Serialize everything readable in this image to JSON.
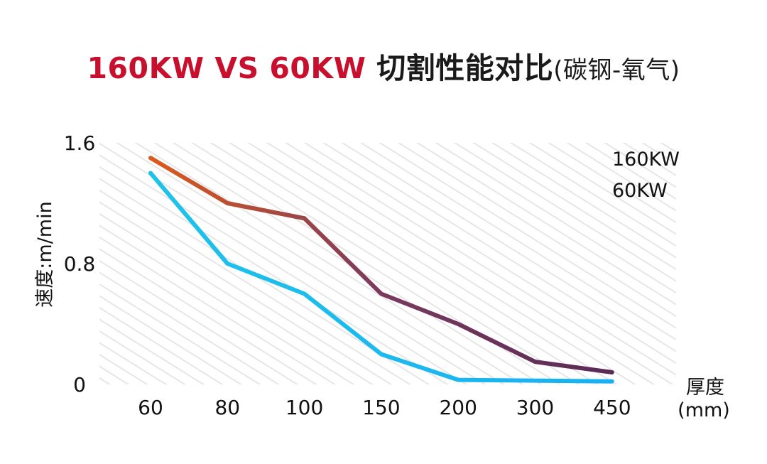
{
  "title": {
    "accent": "160KW VS 60KW",
    "main": " 切割性能对比",
    "suffix": "(碳钢-氧气)"
  },
  "chart_data": {
    "type": "line",
    "categories": [
      "60",
      "80",
      "100",
      "150",
      "200",
      "300",
      "450"
    ],
    "series": [
      {
        "name": "160KW",
        "values": [
          1.5,
          1.2,
          1.1,
          0.6,
          0.4,
          0.15,
          0.08
        ],
        "colors": [
          "#dd5a1c",
          "#7a3a5e",
          "#5a2a55"
        ]
      },
      {
        "name": "60KW",
        "values": [
          1.4,
          0.8,
          0.6,
          0.2,
          0.03,
          0.025,
          0.02
        ],
        "colors": [
          "#1ec3ea",
          "#1ab0f2"
        ]
      }
    ],
    "ylabel": "速度:m/min",
    "xlabel": "厚度",
    "xlabel_unit": "(mm)",
    "yticks": [
      "0",
      "0.8",
      "1.6"
    ],
    "ylim": [
      0,
      1.6
    ],
    "grid": false,
    "background": "diagonal-hatch",
    "legend_position": "top-right"
  }
}
